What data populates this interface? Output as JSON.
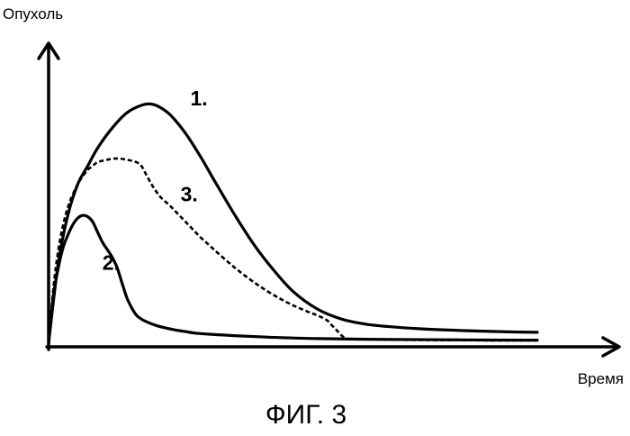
{
  "chart_data": {
    "type": "line",
    "ylabel": "Опухоль",
    "xlabel": "Время",
    "caption": "ФИГ. 3",
    "xlim": [
      0,
      100
    ],
    "ylim": [
      0,
      100
    ],
    "grid": false,
    "axis_arrows": true,
    "series": [
      {
        "name": "1.",
        "style": "solid",
        "color": "#000000",
        "x": [
          0,
          2,
          4,
          6,
          8,
          10,
          13,
          16,
          19,
          21,
          23,
          25,
          28,
          31,
          34,
          38,
          42,
          46,
          50,
          55,
          60,
          65,
          70,
          76,
          82,
          88,
          94,
          100
        ],
        "y": [
          0,
          32,
          51,
          63,
          70,
          77,
          85,
          91,
          94,
          94.5,
          93,
          90,
          83,
          74,
          64,
          51,
          39,
          29,
          20.5,
          13.5,
          9.5,
          7.5,
          6.5,
          5.7,
          5.2,
          4.8,
          4.5,
          4.3
        ]
      },
      {
        "name": "2.",
        "style": "solid",
        "color": "#000000",
        "x": [
          0,
          1,
          2,
          3,
          4,
          5,
          6,
          7,
          8,
          9,
          10,
          11,
          12,
          13,
          14,
          15,
          16,
          17,
          18,
          19,
          20,
          22,
          24,
          26,
          28,
          30,
          34,
          38,
          45,
          55,
          70,
          85,
          100
        ],
        "y": [
          0,
          19,
          30,
          38,
          43,
          47,
          49.5,
          50.5,
          50,
          48,
          44,
          40,
          37,
          34,
          30,
          24,
          18,
          14,
          11,
          9.5,
          8.5,
          7,
          6,
          5.2,
          4.6,
          4,
          3.4,
          3,
          2.4,
          1.8,
          1.5,
          1.3,
          1.2
        ]
      },
      {
        "name": "3.",
        "style": "dashed",
        "color": "#000000",
        "x": [
          0,
          1,
          2,
          3,
          4,
          5,
          6,
          7,
          8,
          9,
          10,
          12,
          14,
          16,
          18,
          19,
          20,
          21,
          22,
          23,
          25,
          27,
          29,
          31,
          33,
          35,
          38,
          41,
          44,
          47,
          50,
          53,
          55,
          57,
          58,
          59,
          60,
          61,
          63,
          66,
          70,
          75,
          80,
          85,
          90,
          95,
          100
        ],
        "y": [
          0,
          22,
          37,
          47,
          54,
          59,
          63,
          66,
          68.5,
          70,
          71.5,
          72.5,
          73,
          72.5,
          71.5,
          70,
          66.5,
          63,
          60,
          57.5,
          54,
          50,
          46,
          42,
          38.5,
          35,
          30,
          25.5,
          21.5,
          18,
          15,
          12.5,
          11,
          9,
          7,
          5,
          3,
          1.8,
          1.6,
          1.5,
          1.4,
          1.3,
          1.2,
          1.2,
          1.1,
          1.1,
          1.1
        ]
      }
    ],
    "annotations": [
      {
        "text": "1.",
        "series": "1.",
        "x": 29,
        "y": 94
      },
      {
        "text": "2.",
        "series": "2.",
        "x": 11,
        "y": 29
      },
      {
        "text": "3.",
        "series": "3.",
        "x": 27,
        "y": 56
      }
    ]
  }
}
